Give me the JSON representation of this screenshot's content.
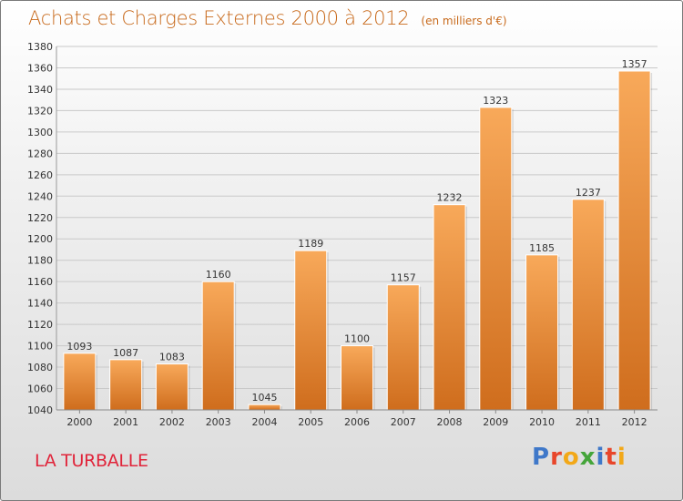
{
  "header": {
    "title": "Achats et Charges Externes 2000 à 2012",
    "subtitle": "(en milliers d'€)"
  },
  "footer": {
    "place": "LA TURBALLE",
    "logo_text": "Proxiti"
  },
  "colors": {
    "title": "#c86a1c",
    "place": "#e0243a",
    "bar_top": "#f8a95a",
    "bar_bottom": "#cf6d1d"
  },
  "chart_data": {
    "type": "bar",
    "categories": [
      "2000",
      "2001",
      "2002",
      "2003",
      "2004",
      "2005",
      "2006",
      "2007",
      "2008",
      "2009",
      "2010",
      "2011",
      "2012"
    ],
    "values": [
      1093,
      1087,
      1083,
      1160,
      1045,
      1189,
      1100,
      1157,
      1232,
      1323,
      1185,
      1237,
      1357
    ],
    "title": "Achats et Charges Externes 2000 à 2012",
    "subtitle": "(en milliers d'€)",
    "ylim": [
      1040,
      1380
    ],
    "yticks": [
      1040,
      1060,
      1080,
      1100,
      1120,
      1140,
      1160,
      1180,
      1200,
      1220,
      1240,
      1260,
      1280,
      1300,
      1320,
      1340,
      1360,
      1380
    ],
    "grid": true,
    "legend": "none"
  }
}
